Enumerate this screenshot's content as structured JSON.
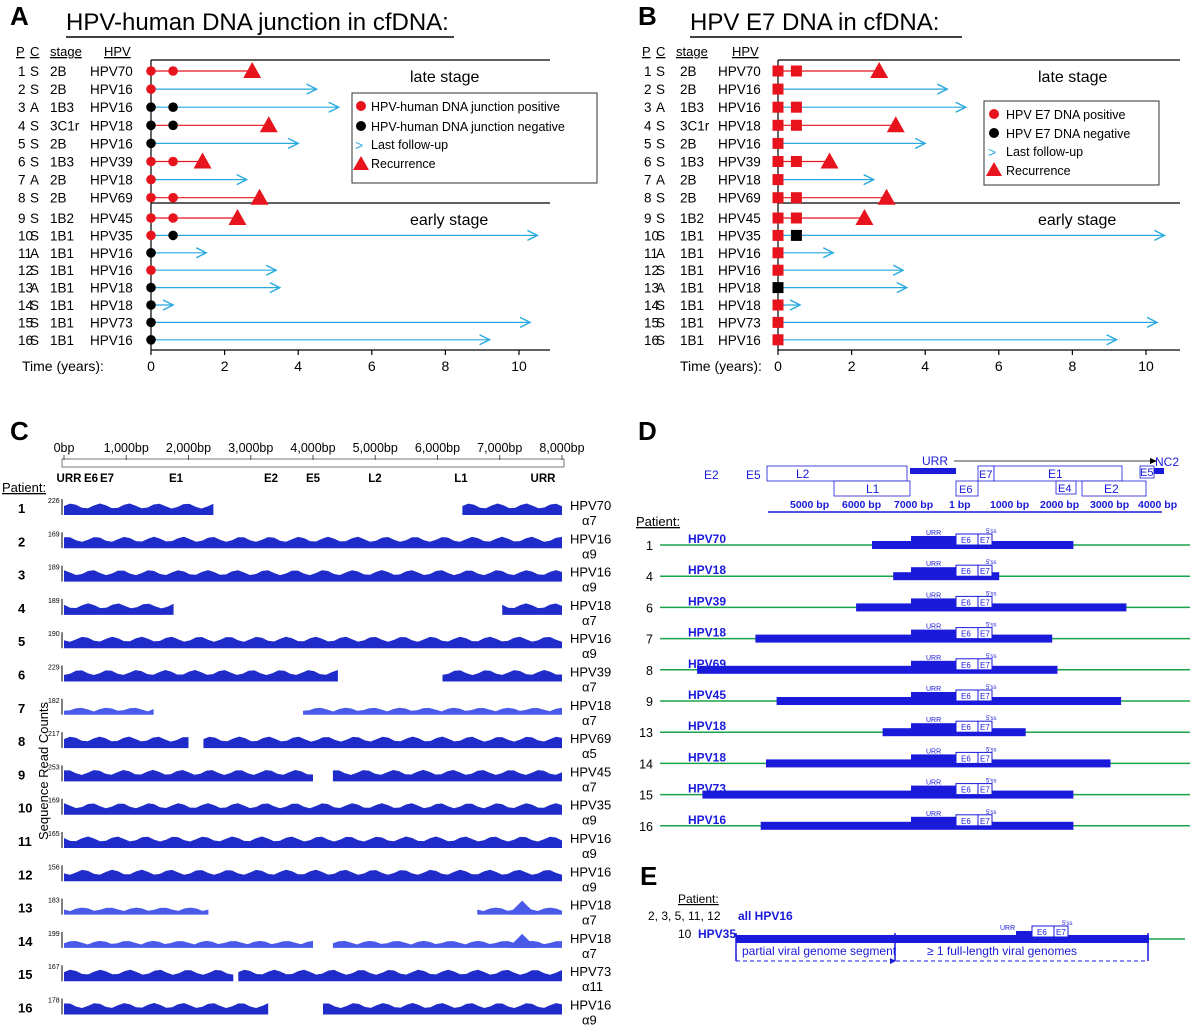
{
  "panelA": {
    "letter": "A",
    "title": "HPV-human DNA junction in cfDNA:",
    "hdr": {
      "p": "P",
      "c": "C",
      "stage": "stage",
      "hpv": "HPV"
    },
    "late_label": "late stage",
    "early_label": "early stage",
    "time_label": "Time (years):",
    "legend": [
      "HPV-human DNA junction positive",
      "HPV-human DNA junction negative",
      "Last follow-up",
      "Recurrence"
    ],
    "rows": [
      {
        "p": "1",
        "c": "S",
        "stage": "2B",
        "hpv": "HPV70",
        "first": "pos",
        "second": "pos",
        "second_t": 0.6,
        "end_t": 2.75,
        "end": "rec"
      },
      {
        "p": "2",
        "c": "S",
        "stage": "2B",
        "hpv": "HPV16",
        "first": "pos",
        "second": null,
        "second_t": null,
        "end_t": 4.5,
        "end": "fu"
      },
      {
        "p": "3",
        "c": "A",
        "stage": "1B3",
        "hpv": "HPV16",
        "first": "neg",
        "second": "neg",
        "second_t": 0.6,
        "end_t": 5.1,
        "end": "fu"
      },
      {
        "p": "4",
        "c": "S",
        "stage": "3C1r",
        "hpv": "HPV18",
        "first": "neg",
        "second": "neg",
        "second_t": 0.6,
        "end_t": 3.2,
        "end": "rec"
      },
      {
        "p": "5",
        "c": "S",
        "stage": "2B",
        "hpv": "HPV16",
        "first": "neg",
        "second": null,
        "second_t": null,
        "end_t": 4.0,
        "end": "fu"
      },
      {
        "p": "6",
        "c": "S",
        "stage": "1B3",
        "hpv": "HPV39",
        "first": "pos",
        "second": "pos",
        "second_t": 0.6,
        "end_t": 1.4,
        "end": "rec"
      },
      {
        "p": "7",
        "c": "A",
        "stage": "2B",
        "hpv": "HPV18",
        "first": "pos",
        "second": null,
        "second_t": null,
        "end_t": 2.6,
        "end": "fu"
      },
      {
        "p": "8",
        "c": "S",
        "stage": "2B",
        "hpv": "HPV69",
        "first": "pos",
        "second": "pos",
        "second_t": 0.6,
        "end_t": 2.95,
        "end": "rec"
      },
      {
        "p": "9",
        "c": "S",
        "stage": "1B2",
        "hpv": "HPV45",
        "first": "pos",
        "second": "pos",
        "second_t": 0.6,
        "end_t": 2.35,
        "end": "rec"
      },
      {
        "p": "10",
        "c": "S",
        "stage": "1B1",
        "hpv": "HPV35",
        "first": "pos",
        "second": "neg",
        "second_t": 0.6,
        "end_t": 10.5,
        "end": "fu"
      },
      {
        "p": "11",
        "c": "A",
        "stage": "1B1",
        "hpv": "HPV16",
        "first": "neg",
        "second": null,
        "second_t": null,
        "end_t": 1.5,
        "end": "fu"
      },
      {
        "p": "12",
        "c": "S",
        "stage": "1B1",
        "hpv": "HPV16",
        "first": "pos",
        "second": null,
        "second_t": null,
        "end_t": 3.4,
        "end": "fu"
      },
      {
        "p": "13",
        "c": "A",
        "stage": "1B1",
        "hpv": "HPV18",
        "first": "neg",
        "second": null,
        "second_t": null,
        "end_t": 3.5,
        "end": "fu"
      },
      {
        "p": "14",
        "c": "S",
        "stage": "1B1",
        "hpv": "HPV18",
        "first": "neg",
        "second": null,
        "second_t": null,
        "end_t": 0.6,
        "end": "fu"
      },
      {
        "p": "15",
        "c": "S",
        "stage": "1B1",
        "hpv": "HPV73",
        "first": "neg",
        "second": null,
        "second_t": null,
        "end_t": 10.3,
        "end": "fu"
      },
      {
        "p": "16",
        "c": "S",
        "stage": "1B1",
        "hpv": "HPV16",
        "first": "neg",
        "second": null,
        "second_t": null,
        "end_t": 9.2,
        "end": "fu"
      }
    ],
    "ticks": [
      "0",
      "2",
      "4",
      "6",
      "8",
      "10"
    ]
  },
  "panelB": {
    "letter": "B",
    "title": "HPV E7 DNA in cfDNA:",
    "hdr": {
      "p": "P",
      "c": "C",
      "stage": "stage",
      "hpv": "HPV"
    },
    "late_label": "late stage",
    "early_label": "early stage",
    "time_label": "Time (years):",
    "legend": [
      "HPV E7 DNA positive",
      "HPV E7 DNA negative",
      "Last follow-up",
      "Recurrence"
    ],
    "rows": [
      {
        "p": "1",
        "c": "S",
        "stage": "2B",
        "hpv": "HPV70",
        "first": "pos",
        "second": "pos",
        "second_t": 0.5,
        "end_t": 2.75,
        "end": "rec"
      },
      {
        "p": "2",
        "c": "S",
        "stage": "2B",
        "hpv": "HPV16",
        "first": "pos",
        "second": null,
        "second_t": null,
        "end_t": 4.6,
        "end": "fu"
      },
      {
        "p": "3",
        "c": "A",
        "stage": "1B3",
        "hpv": "HPV16",
        "first": "pos",
        "second": "pos",
        "second_t": 0.5,
        "end_t": 5.1,
        "end": "fu"
      },
      {
        "p": "4",
        "c": "S",
        "stage": "3C1r",
        "hpv": "HPV18",
        "first": "pos",
        "second": "pos",
        "second_t": 0.5,
        "end_t": 3.2,
        "end": "rec"
      },
      {
        "p": "5",
        "c": "S",
        "stage": "2B",
        "hpv": "HPV16",
        "first": "pos",
        "second": null,
        "second_t": null,
        "end_t": 4.0,
        "end": "fu"
      },
      {
        "p": "6",
        "c": "S",
        "stage": "1B3",
        "hpv": "HPV39",
        "first": "pos",
        "second": "pos",
        "second_t": 0.5,
        "end_t": 1.4,
        "end": "rec"
      },
      {
        "p": "7",
        "c": "A",
        "stage": "2B",
        "hpv": "HPV18",
        "first": "pos",
        "second": null,
        "second_t": null,
        "end_t": 2.6,
        "end": "fu"
      },
      {
        "p": "8",
        "c": "S",
        "stage": "2B",
        "hpv": "HPV69",
        "first": "pos",
        "second": "pos",
        "second_t": 0.5,
        "end_t": 2.95,
        "end": "rec"
      },
      {
        "p": "9",
        "c": "S",
        "stage": "1B2",
        "hpv": "HPV45",
        "first": "pos",
        "second": "pos",
        "second_t": 0.5,
        "end_t": 2.35,
        "end": "rec"
      },
      {
        "p": "10",
        "c": "S",
        "stage": "1B1",
        "hpv": "HPV35",
        "first": "pos",
        "second": "neg",
        "second_t": 0.5,
        "end_t": 10.5,
        "end": "fu"
      },
      {
        "p": "11",
        "c": "A",
        "stage": "1B1",
        "hpv": "HPV16",
        "first": "pos",
        "second": null,
        "second_t": null,
        "end_t": 1.5,
        "end": "fu"
      },
      {
        "p": "12",
        "c": "S",
        "stage": "1B1",
        "hpv": "HPV16",
        "first": "pos",
        "second": null,
        "second_t": null,
        "end_t": 3.4,
        "end": "fu"
      },
      {
        "p": "13",
        "c": "A",
        "stage": "1B1",
        "hpv": "HPV18",
        "first": "neg",
        "second": null,
        "second_t": null,
        "end_t": 3.5,
        "end": "fu"
      },
      {
        "p": "14",
        "c": "S",
        "stage": "1B1",
        "hpv": "HPV18",
        "first": "pos",
        "second": null,
        "second_t": null,
        "end_t": 0.6,
        "end": "fu"
      },
      {
        "p": "15",
        "c": "S",
        "stage": "1B1",
        "hpv": "HPV73",
        "first": "pos",
        "second": null,
        "second_t": null,
        "end_t": 10.3,
        "end": "fu"
      },
      {
        "p": "16",
        "c": "S",
        "stage": "1B1",
        "hpv": "HPV16",
        "first": "pos",
        "second": null,
        "second_t": null,
        "end_t": 9.2,
        "end": "fu"
      }
    ],
    "ticks": [
      "0",
      "2",
      "4",
      "6",
      "8",
      "10"
    ]
  },
  "panelC": {
    "letter": "C",
    "bp_ticks": [
      "0bp",
      "1,000bp",
      "2,000bp",
      "3,000bp",
      "4,000bp",
      "5,000bp",
      "6,000bp",
      "7,000bp",
      "8,000bp"
    ],
    "genes": [
      "URR",
      "E6",
      "E7",
      "E1",
      "E2",
      "E5",
      "L2",
      "L1",
      "URR"
    ],
    "patient_label": "Patient:",
    "ylabel": "Sequence Read Counts",
    "rows": [
      {
        "p": "1",
        "max": "226",
        "hpv": "HPV70",
        "clade": "α7",
        "segs": [
          [
            0,
            0.3
          ],
          [
            0.8,
            1.0
          ]
        ],
        "light": false
      },
      {
        "p": "2",
        "max": "169",
        "hpv": "HPV16",
        "clade": "α9",
        "segs": [
          [
            0,
            1.0
          ]
        ],
        "light": false
      },
      {
        "p": "3",
        "max": "189",
        "hpv": "HPV16",
        "clade": "α9",
        "segs": [
          [
            0,
            1.0
          ]
        ],
        "light": false
      },
      {
        "p": "4",
        "max": "189",
        "hpv": "HPV18",
        "clade": "α7",
        "segs": [
          [
            0,
            0.22
          ],
          [
            0.88,
            1.0
          ]
        ],
        "light": false
      },
      {
        "p": "5",
        "max": "190",
        "hpv": "HPV16",
        "clade": "α9",
        "segs": [
          [
            0,
            1.0
          ]
        ],
        "light": false
      },
      {
        "p": "6",
        "max": "229",
        "hpv": "HPV39",
        "clade": "α7",
        "segs": [
          [
            0,
            0.55
          ],
          [
            0.76,
            1.0
          ]
        ],
        "light": false
      },
      {
        "p": "7",
        "max": "182",
        "hpv": "HPV18",
        "clade": "α7",
        "segs": [
          [
            0,
            0.18
          ],
          [
            0.48,
            1.0
          ]
        ],
        "light": true
      },
      {
        "p": "8",
        "max": "217",
        "hpv": "HPV69",
        "clade": "α5",
        "segs": [
          [
            0,
            0.25
          ],
          [
            0.28,
            1.0
          ]
        ],
        "light": false
      },
      {
        "p": "9",
        "max": "253",
        "hpv": "HPV45",
        "clade": "α7",
        "segs": [
          [
            0,
            0.5
          ],
          [
            0.54,
            1.0
          ]
        ],
        "light": false
      },
      {
        "p": "10",
        "max": "169",
        "hpv": "HPV35",
        "clade": "α9",
        "segs": [
          [
            0,
            1.0
          ]
        ],
        "light": false
      },
      {
        "p": "11",
        "max": "165",
        "hpv": "HPV16",
        "clade": "α9",
        "segs": [
          [
            0,
            1.0
          ]
        ],
        "light": false
      },
      {
        "p": "12",
        "max": "156",
        "hpv": "HPV16",
        "clade": "α9",
        "segs": [
          [
            0,
            1.0
          ]
        ],
        "light": false
      },
      {
        "p": "13",
        "max": "183",
        "hpv": "HPV18",
        "clade": "α7",
        "segs": [
          [
            0,
            0.29
          ],
          [
            0.83,
            1.0
          ]
        ],
        "light": true
      },
      {
        "p": "14",
        "max": "199",
        "hpv": "HPV18",
        "clade": "α7",
        "segs": [
          [
            0,
            0.5
          ],
          [
            0.54,
            1.0
          ]
        ],
        "light": true
      },
      {
        "p": "15",
        "max": "167",
        "hpv": "HPV73",
        "clade": "α11",
        "segs": [
          [
            0,
            0.34
          ],
          [
            0.35,
            1.0
          ]
        ],
        "light": false
      },
      {
        "p": "16",
        "max": "178",
        "hpv": "HPV16",
        "clade": "α9",
        "segs": [
          [
            0,
            0.41
          ],
          [
            0.52,
            1.0
          ]
        ],
        "light": false
      }
    ]
  },
  "panelD": {
    "letter": "D",
    "patient_label": "Patient:",
    "map_labels": [
      "E2",
      "E5",
      "L2",
      "L1",
      "URR",
      "E6",
      "E7",
      "E1",
      "E4",
      "E2",
      "E5",
      "NC2"
    ],
    "bp_labels": [
      "5000 bp",
      "6000 bp",
      "7000 bp",
      "1 bp",
      "1000 bp",
      "2000 bp",
      "3000 bp",
      "4000 bp"
    ],
    "box_labels": {
      "urr": "URR",
      "e6": "E6",
      "e7": "E7",
      "ss": "5'ss"
    },
    "rows": [
      {
        "p": "1",
        "hpv": "HPV70",
        "start": 0.4,
        "end": 0.78
      },
      {
        "p": "4",
        "hpv": "HPV18",
        "start": 0.44,
        "end": 0.64
      },
      {
        "p": "6",
        "hpv": "HPV39",
        "start": 0.37,
        "end": 0.88
      },
      {
        "p": "7",
        "hpv": "HPV18",
        "start": 0.18,
        "end": 0.74
      },
      {
        "p": "8",
        "hpv": "HPV69",
        "start": 0.07,
        "end": 0.75
      },
      {
        "p": "9",
        "hpv": "HPV45",
        "start": 0.22,
        "end": 0.87
      },
      {
        "p": "13",
        "hpv": "HPV18",
        "start": 0.42,
        "end": 0.69
      },
      {
        "p": "14",
        "hpv": "HPV18",
        "start": 0.2,
        "end": 0.85
      },
      {
        "p": "15",
        "hpv": "HPV73",
        "start": 0.08,
        "end": 0.78
      },
      {
        "p": "16",
        "hpv": "HPV16",
        "start": 0.19,
        "end": 0.78
      }
    ]
  },
  "panelE": {
    "letter": "E",
    "patient_label": "Patient:",
    "row1_patients": "2, 3, 5, 11, 12",
    "row1_hpv": "all HPV16",
    "row2_patient": "10",
    "row2_hpv": "HPV35",
    "seg1": "partial viral genome segment",
    "seg2": "≥ 1 full-length viral genomes",
    "box_labels": {
      "urr": "URR",
      "e6": "E6",
      "e7": "E7",
      "ss": "5'ss"
    }
  },
  "colors": {
    "blue": "#1a1adb",
    "cyan": "#29a9e0",
    "red": "#e8141d",
    "green": "#1aa34a"
  }
}
